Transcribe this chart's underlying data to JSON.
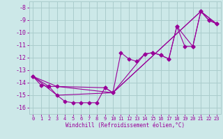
{
  "xlabel": "Windchill (Refroidissement éolien,°C)",
  "bg_color": "#cce8e8",
  "grid_color": "#aacccc",
  "line_color": "#990099",
  "xlim": [
    -0.5,
    23.5
  ],
  "ylim": [
    -16.5,
    -7.5
  ],
  "xticks": [
    0,
    1,
    2,
    3,
    4,
    5,
    6,
    7,
    8,
    9,
    10,
    11,
    12,
    13,
    14,
    15,
    16,
    17,
    18,
    19,
    20,
    21,
    22,
    23
  ],
  "yticks": [
    -8,
    -9,
    -10,
    -11,
    -12,
    -13,
    -14,
    -15,
    -16
  ],
  "series1_x": [
    0,
    1,
    2,
    3,
    4,
    5,
    6,
    7,
    8,
    9,
    10,
    11,
    12,
    13,
    14,
    15,
    16,
    17,
    18,
    19,
    20,
    21,
    22,
    23
  ],
  "series1_y": [
    -13.5,
    -14.2,
    -14.3,
    -15.0,
    -15.5,
    -15.6,
    -15.6,
    -15.6,
    -15.6,
    -14.4,
    -14.8,
    -11.6,
    -12.1,
    -12.3,
    -11.7,
    -11.6,
    -11.8,
    -12.1,
    -9.5,
    -11.1,
    -11.1,
    -8.3,
    -9.0,
    -9.3
  ],
  "series2_x": [
    0,
    2,
    3,
    9,
    10,
    14,
    15,
    16,
    17,
    18,
    20,
    21,
    22,
    23
  ],
  "series2_y": [
    -13.5,
    -14.3,
    -14.3,
    -14.4,
    -14.8,
    -11.7,
    -11.6,
    -11.8,
    -12.1,
    -9.5,
    -11.1,
    -8.3,
    -9.0,
    -9.3
  ],
  "series3_x": [
    0,
    3,
    10,
    21,
    23
  ],
  "series3_y": [
    -13.5,
    -15.0,
    -14.8,
    -8.3,
    -9.3
  ],
  "series4_x": [
    0,
    3,
    10,
    21,
    23
  ],
  "series4_y": [
    -13.5,
    -14.3,
    -14.8,
    -8.3,
    -9.3
  ]
}
